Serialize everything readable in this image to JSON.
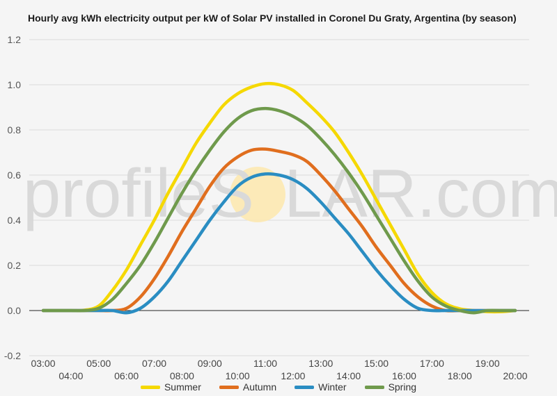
{
  "title": "Hourly avg kWh electricity output per kW of Solar PV installed in Coronel Du Graty, Argentina (by season)",
  "watermark": {
    "left": "profileS",
    "right": "LAR.com",
    "sun_color": "#fde9b2"
  },
  "colors": {
    "Summer": "#f5d800",
    "Autumn": "#e06e1e",
    "Winter": "#2a8dc2",
    "Spring": "#6f9a4c"
  },
  "chart_data": {
    "type": "line",
    "title": "Hourly avg kWh electricity output per kW of Solar PV installed in Coronel Du Graty, Argentina (by season)",
    "x": [
      3,
      3.5,
      4,
      4.5,
      5,
      5.5,
      6,
      6.5,
      7,
      7.5,
      8,
      8.5,
      9,
      9.5,
      10,
      10.5,
      11,
      11.5,
      12,
      12.5,
      13,
      13.5,
      14,
      14.5,
      15,
      15.5,
      16,
      16.5,
      17,
      17.5,
      18,
      18.5,
      19,
      19.5,
      20
    ],
    "x_tick_labels": [
      "03:00",
      "04:00",
      "05:00",
      "06:00",
      "07:00",
      "08:00",
      "09:00",
      "10:00",
      "11:00",
      "12:00",
      "13:00",
      "14:00",
      "15:00",
      "16:00",
      "17:00",
      "18:00",
      "19:00",
      "20:00"
    ],
    "y_ticks": [
      "-0.2",
      "0.0",
      "0.2",
      "0.4",
      "0.6",
      "0.8",
      "1.0",
      "1.2"
    ],
    "ylim": [
      -0.2,
      1.2
    ],
    "xlim": [
      3,
      20
    ],
    "grid": true,
    "legend_position": "bottom",
    "series": [
      {
        "name": "Summer",
        "values": [
          0,
          0,
          0,
          0.002,
          0.02,
          0.09,
          0.18,
          0.29,
          0.4,
          0.52,
          0.63,
          0.74,
          0.83,
          0.91,
          0.96,
          0.99,
          1.005,
          1.0,
          0.975,
          0.92,
          0.86,
          0.79,
          0.7,
          0.6,
          0.49,
          0.38,
          0.27,
          0.16,
          0.08,
          0.03,
          0.008,
          0,
          -0.005,
          -0.005,
          0
        ]
      },
      {
        "name": "Autumn",
        "values": [
          0,
          0,
          0,
          0,
          0,
          0,
          0.01,
          0.06,
          0.14,
          0.24,
          0.35,
          0.45,
          0.55,
          0.63,
          0.68,
          0.71,
          0.715,
          0.705,
          0.69,
          0.66,
          0.6,
          0.53,
          0.45,
          0.37,
          0.28,
          0.2,
          0.12,
          0.06,
          0.02,
          0,
          0,
          0,
          0,
          0,
          0
        ]
      },
      {
        "name": "Winter",
        "values": [
          0,
          0,
          0,
          0,
          0,
          0,
          -0.01,
          0.01,
          0.06,
          0.13,
          0.22,
          0.31,
          0.4,
          0.48,
          0.55,
          0.59,
          0.605,
          0.6,
          0.58,
          0.54,
          0.48,
          0.41,
          0.34,
          0.26,
          0.18,
          0.11,
          0.05,
          0.01,
          0,
          0,
          0,
          0,
          0,
          0,
          0
        ]
      },
      {
        "name": "Spring",
        "values": [
          0,
          0,
          0,
          0,
          0.01,
          0.05,
          0.12,
          0.2,
          0.3,
          0.41,
          0.52,
          0.62,
          0.71,
          0.79,
          0.85,
          0.885,
          0.895,
          0.885,
          0.86,
          0.82,
          0.76,
          0.69,
          0.61,
          0.52,
          0.42,
          0.32,
          0.22,
          0.13,
          0.06,
          0.02,
          0,
          -0.01,
          0,
          0,
          0
        ]
      }
    ]
  }
}
